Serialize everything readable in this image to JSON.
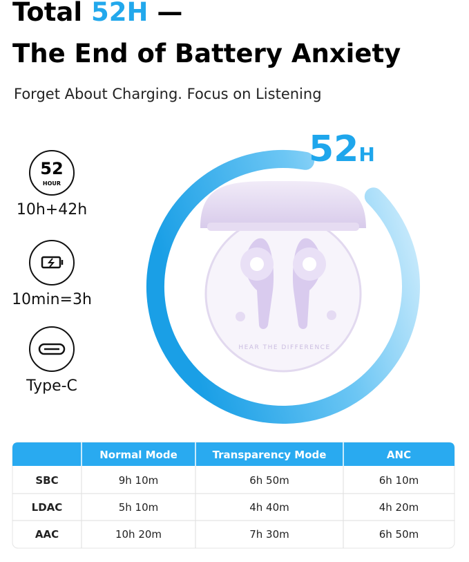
{
  "header": {
    "title": {
      "prefix": "Total",
      "highlight": "52H",
      "suffix": "—",
      "line2": "The End of Battery Anxiety"
    },
    "subtitle": "Forget About Charging. Focus on Listening"
  },
  "ring": {
    "number": "52",
    "unit": "H"
  },
  "features": [
    {
      "icon_number": "52",
      "icon_unit": "HOUR",
      "label": "10h+42h"
    },
    {
      "label": "10min=3h"
    },
    {
      "label": "Type-C"
    }
  ],
  "case_text": "HEAR THE DIFFERENCE",
  "table": {
    "headers": [
      "Normal Mode",
      "Transparency Mode",
      "ANC"
    ],
    "rows": [
      [
        "SBC",
        "9h 10m",
        "6h 50m",
        "6h 10m"
      ],
      [
        "LDAC",
        "5h 10m",
        "4h 40m",
        "4h 20m"
      ],
      [
        "AAC",
        "10h 20m",
        "7h 30m",
        "6h 50m"
      ]
    ]
  }
}
